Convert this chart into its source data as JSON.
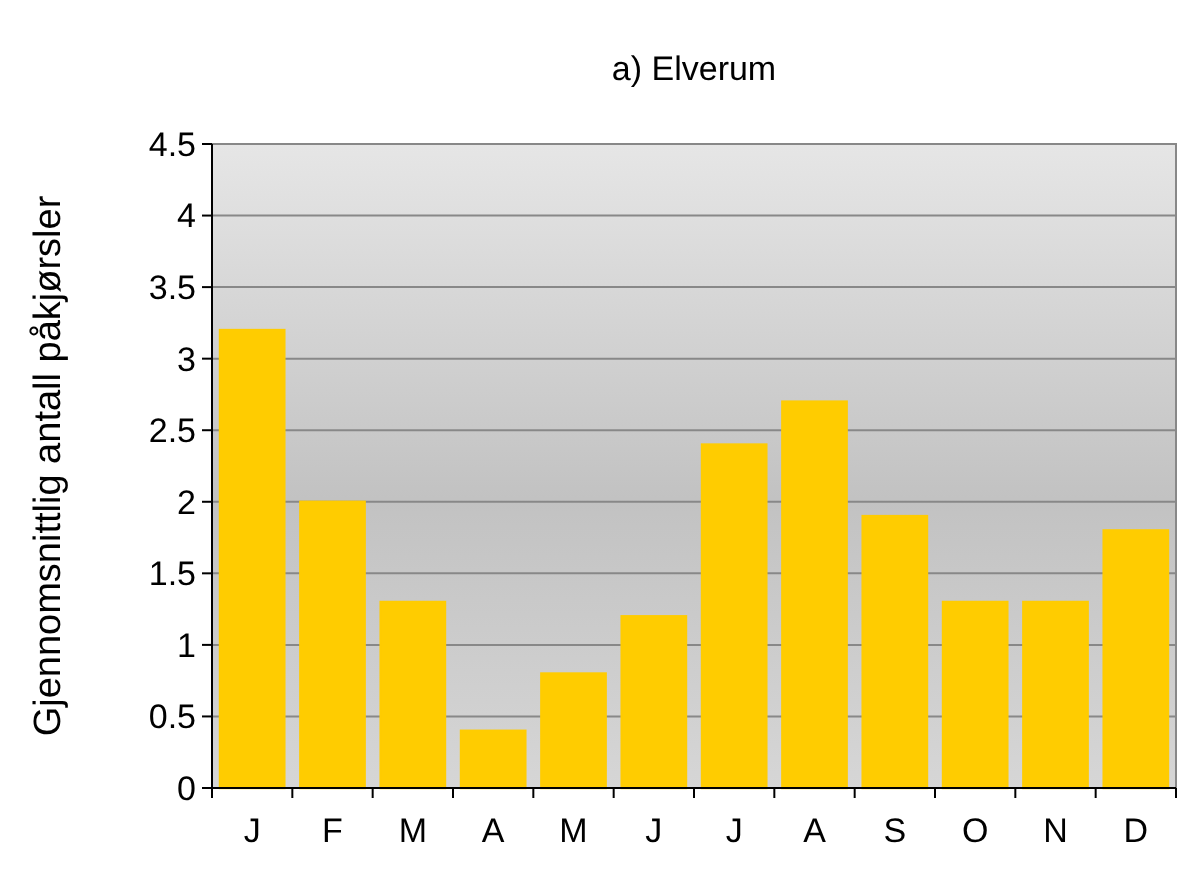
{
  "chart_data": {
    "type": "bar",
    "title": "a) Elverum",
    "ylabel": "Gjennomsnittlig antall påkjørsler",
    "categories": [
      "J",
      "F",
      "M",
      "A",
      "M",
      "J",
      "J",
      "A",
      "S",
      "O",
      "N",
      "D"
    ],
    "values": [
      3.2,
      2.0,
      1.3,
      0.4,
      0.8,
      1.2,
      2.4,
      2.7,
      1.9,
      1.3,
      1.3,
      1.8
    ],
    "color": "#ffcc00",
    "ylim": [
      0,
      4.5
    ],
    "yticks": [
      0,
      0.5,
      1,
      1.5,
      2,
      2.5,
      3,
      3.5,
      4,
      4.5
    ],
    "grid": "y"
  }
}
